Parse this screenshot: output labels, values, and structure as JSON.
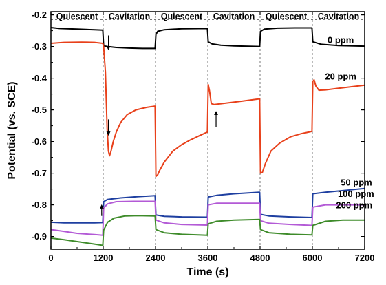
{
  "chart_data": {
    "type": "line",
    "title": "",
    "xlabel": "Time (s)",
    "ylabel": "Potential (vs. SCE)",
    "xlim": [
      0,
      7200
    ],
    "ylim": [
      -0.94,
      -0.19
    ],
    "x_ticks": [
      0,
      1200,
      2400,
      3600,
      4800,
      6000,
      7200
    ],
    "x_tick_labels": [
      "0",
      "1200",
      "2400",
      "3600",
      "4800",
      "6000",
      "7200"
    ],
    "y_ticks": [
      -0.9,
      -0.8,
      -0.7,
      -0.6,
      -0.5,
      -0.4,
      -0.3,
      -0.2
    ],
    "y_tick_labels": [
      "-0.9",
      "-0.8",
      "-0.7",
      "-0.6",
      "-0.5",
      "-0.4",
      "-0.3",
      "-0.2"
    ],
    "grid": false,
    "phase_boundaries": [
      1200,
      2400,
      3600,
      4800,
      6000
    ],
    "phase_label_y": -0.205,
    "phases": [
      {
        "label": "Quiescent",
        "x_center": 600
      },
      {
        "label": "Cavitation",
        "x_center": 1800
      },
      {
        "label": "Quiescent",
        "x_center": 3000
      },
      {
        "label": "Cavitation",
        "x_center": 4200
      },
      {
        "label": "Quiescent",
        "x_center": 5400
      },
      {
        "label": "Cavitation",
        "x_center": 6600
      }
    ],
    "series": [
      {
        "name": "0 ppm",
        "color": "#000000",
        "label_x": 6650,
        "label_y": -0.28,
        "points": [
          [
            0,
            -0.24
          ],
          [
            200,
            -0.243
          ],
          [
            600,
            -0.245
          ],
          [
            1000,
            -0.247
          ],
          [
            1190,
            -0.248
          ],
          [
            1210,
            -0.298
          ],
          [
            1300,
            -0.3
          ],
          [
            1500,
            -0.303
          ],
          [
            1800,
            -0.305
          ],
          [
            2100,
            -0.306
          ],
          [
            2390,
            -0.306
          ],
          [
            2410,
            -0.262
          ],
          [
            2450,
            -0.252
          ],
          [
            2600,
            -0.247
          ],
          [
            3000,
            -0.244
          ],
          [
            3590,
            -0.243
          ],
          [
            3610,
            -0.285
          ],
          [
            3700,
            -0.292
          ],
          [
            3900,
            -0.296
          ],
          [
            4200,
            -0.298
          ],
          [
            4790,
            -0.3
          ],
          [
            4810,
            -0.252
          ],
          [
            4900,
            -0.245
          ],
          [
            5200,
            -0.242
          ],
          [
            5600,
            -0.241
          ],
          [
            5990,
            -0.241
          ],
          [
            6010,
            -0.285
          ],
          [
            6200,
            -0.293
          ],
          [
            6600,
            -0.297
          ],
          [
            7200,
            -0.299
          ]
        ]
      },
      {
        "name": "20 ppm",
        "color": "#e8401a",
        "label_x": 6650,
        "label_y": -0.395,
        "points": [
          [
            0,
            -0.29
          ],
          [
            300,
            -0.287
          ],
          [
            700,
            -0.286
          ],
          [
            1000,
            -0.287
          ],
          [
            1190,
            -0.29
          ],
          [
            1210,
            -0.3
          ],
          [
            1250,
            -0.38
          ],
          [
            1290,
            -0.56
          ],
          [
            1320,
            -0.63
          ],
          [
            1345,
            -0.645
          ],
          [
            1380,
            -0.63
          ],
          [
            1430,
            -0.6
          ],
          [
            1500,
            -0.57
          ],
          [
            1600,
            -0.54
          ],
          [
            1750,
            -0.515
          ],
          [
            1950,
            -0.5
          ],
          [
            2200,
            -0.492
          ],
          [
            2390,
            -0.488
          ],
          [
            2410,
            -0.71
          ],
          [
            2450,
            -0.705
          ],
          [
            2500,
            -0.69
          ],
          [
            2600,
            -0.665
          ],
          [
            2800,
            -0.63
          ],
          [
            3000,
            -0.61
          ],
          [
            3200,
            -0.595
          ],
          [
            3400,
            -0.582
          ],
          [
            3590,
            -0.57
          ],
          [
            3610,
            -0.42
          ],
          [
            3640,
            -0.44
          ],
          [
            3680,
            -0.48
          ],
          [
            3750,
            -0.483
          ],
          [
            4000,
            -0.479
          ],
          [
            4400,
            -0.472
          ],
          [
            4790,
            -0.465
          ],
          [
            4810,
            -0.7
          ],
          [
            4850,
            -0.698
          ],
          [
            4920,
            -0.67
          ],
          [
            5050,
            -0.63
          ],
          [
            5250,
            -0.605
          ],
          [
            5500,
            -0.585
          ],
          [
            5750,
            -0.575
          ],
          [
            5990,
            -0.568
          ],
          [
            6010,
            -0.41
          ],
          [
            6040,
            -0.405
          ],
          [
            6080,
            -0.425
          ],
          [
            6150,
            -0.438
          ],
          [
            6300,
            -0.437
          ],
          [
            6600,
            -0.432
          ],
          [
            6900,
            -0.427
          ],
          [
            7200,
            -0.422
          ]
        ]
      },
      {
        "name": "50 ppm",
        "color": "#1e3fa0",
        "label_x": 7010,
        "label_y": -0.73,
        "points": [
          [
            0,
            -0.855
          ],
          [
            300,
            -0.857
          ],
          [
            700,
            -0.857
          ],
          [
            1000,
            -0.857
          ],
          [
            1190,
            -0.856
          ],
          [
            1210,
            -0.79
          ],
          [
            1300,
            -0.783
          ],
          [
            1600,
            -0.778
          ],
          [
            2000,
            -0.774
          ],
          [
            2390,
            -0.771
          ],
          [
            2410,
            -0.832
          ],
          [
            2600,
            -0.836
          ],
          [
            3000,
            -0.838
          ],
          [
            3590,
            -0.839
          ],
          [
            3610,
            -0.775
          ],
          [
            3800,
            -0.77
          ],
          [
            4200,
            -0.765
          ],
          [
            4790,
            -0.76
          ],
          [
            4810,
            -0.83
          ],
          [
            5000,
            -0.835
          ],
          [
            5500,
            -0.838
          ],
          [
            5990,
            -0.84
          ],
          [
            6010,
            -0.765
          ],
          [
            6300,
            -0.76
          ],
          [
            6700,
            -0.755
          ],
          [
            7200,
            -0.748
          ]
        ]
      },
      {
        "name": "100 ppm",
        "color": "#b35ad6",
        "label_x": 7000,
        "label_y": -0.766,
        "points": [
          [
            0,
            -0.878
          ],
          [
            200,
            -0.882
          ],
          [
            600,
            -0.89
          ],
          [
            1000,
            -0.894
          ],
          [
            1190,
            -0.896
          ],
          [
            1210,
            -0.81
          ],
          [
            1300,
            -0.797
          ],
          [
            1500,
            -0.79
          ],
          [
            1900,
            -0.789
          ],
          [
            2390,
            -0.789
          ],
          [
            2410,
            -0.848
          ],
          [
            2600,
            -0.857
          ],
          [
            3000,
            -0.862
          ],
          [
            3590,
            -0.864
          ],
          [
            3610,
            -0.8
          ],
          [
            3800,
            -0.795
          ],
          [
            4200,
            -0.795
          ],
          [
            4790,
            -0.795
          ],
          [
            4810,
            -0.85
          ],
          [
            5000,
            -0.858
          ],
          [
            5500,
            -0.862
          ],
          [
            5990,
            -0.865
          ],
          [
            6010,
            -0.807
          ],
          [
            6300,
            -0.8
          ],
          [
            6700,
            -0.8
          ],
          [
            7200,
            -0.8
          ]
        ]
      },
      {
        "name": "200 ppm",
        "color": "#3e8b2a",
        "label_x": 6960,
        "label_y": -0.802,
        "points": [
          [
            0,
            -0.905
          ],
          [
            300,
            -0.91
          ],
          [
            700,
            -0.918
          ],
          [
            1000,
            -0.924
          ],
          [
            1190,
            -0.928
          ],
          [
            1210,
            -0.88
          ],
          [
            1300,
            -0.855
          ],
          [
            1450,
            -0.842
          ],
          [
            1700,
            -0.835
          ],
          [
            2000,
            -0.834
          ],
          [
            2390,
            -0.835
          ],
          [
            2410,
            -0.878
          ],
          [
            2600,
            -0.888
          ],
          [
            3000,
            -0.893
          ],
          [
            3590,
            -0.896
          ],
          [
            3610,
            -0.86
          ],
          [
            3800,
            -0.852
          ],
          [
            4200,
            -0.848
          ],
          [
            4790,
            -0.846
          ],
          [
            4810,
            -0.878
          ],
          [
            5000,
            -0.888
          ],
          [
            5500,
            -0.893
          ],
          [
            5990,
            -0.895
          ],
          [
            6010,
            -0.865
          ],
          [
            6300,
            -0.852
          ],
          [
            6700,
            -0.848
          ],
          [
            7200,
            -0.848
          ]
        ]
      }
    ],
    "arrows": [
      {
        "x": 1320,
        "y_from": -0.265,
        "y_to": -0.305,
        "color": "#000000"
      },
      {
        "x": 1320,
        "y_from": -0.53,
        "y_to": -0.575,
        "color": "#000000"
      },
      {
        "x": 3790,
        "y_from": -0.555,
        "y_to": -0.51,
        "color": "#000000"
      },
      {
        "x": 1165,
        "y_from": -0.835,
        "y_to": -0.805,
        "color": "#000000"
      }
    ]
  }
}
